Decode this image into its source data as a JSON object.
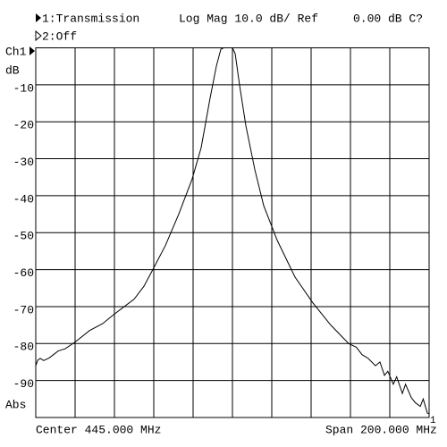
{
  "chart_data": {
    "type": "line",
    "header": {
      "trace1": "1:Transmission",
      "format": "Log Mag 10.0 dB/ Ref",
      "ref": "0.00 dB C?",
      "trace2": "2:Off"
    },
    "channel": "Ch1",
    "y_unit": "dB",
    "y_mode": "Abs",
    "center_label": "Center 445.000 MHz",
    "span_label": "Span 200.000 MHz",
    "ref_marker": "1",
    "xlim": [
      345,
      545
    ],
    "ylim": [
      -100,
      0
    ],
    "yticks": [
      -10,
      -20,
      -30,
      -40,
      -50,
      -60,
      -70,
      -80,
      -90
    ],
    "grid": true,
    "x": [
      345,
      346,
      347.3,
      349,
      351.8,
      354,
      356.4,
      360,
      365,
      372.3,
      379,
      385,
      390,
      395,
      400,
      404.5,
      410.9,
      417.7,
      424.5,
      429.1,
      433.6,
      436.8,
      439.1,
      440.5,
      445,
      446.4,
      448.6,
      451.8,
      456.4,
      460.9,
      467.7,
      476.8,
      485.9,
      495,
      504.1,
      508,
      510.9,
      514,
      517.7,
      520,
      522.3,
      524,
      526.8,
      528.5,
      531.4,
      533,
      536,
      538,
      540.5,
      542,
      544.1,
      545
    ],
    "series": [
      {
        "name": "Transmission",
        "color": "#000000",
        "values": [
          -86,
          -84.5,
          -84,
          -84.6,
          -83.9,
          -83,
          -82,
          -81.4,
          -79.6,
          -76.5,
          -74.6,
          -72,
          -70,
          -68,
          -64.5,
          -60,
          -53.5,
          -45,
          -35.5,
          -27,
          -13.7,
          -5,
          -0.4,
          0,
          0,
          -1.6,
          -10,
          -21,
          -33,
          -42.7,
          -52,
          -62,
          -69,
          -75,
          -80,
          -81,
          -83,
          -84,
          -86,
          -85,
          -88.6,
          -87.5,
          -91,
          -89,
          -93.5,
          -91,
          -94.7,
          -96,
          -97,
          -95,
          -98.8,
          -99
        ]
      }
    ]
  }
}
